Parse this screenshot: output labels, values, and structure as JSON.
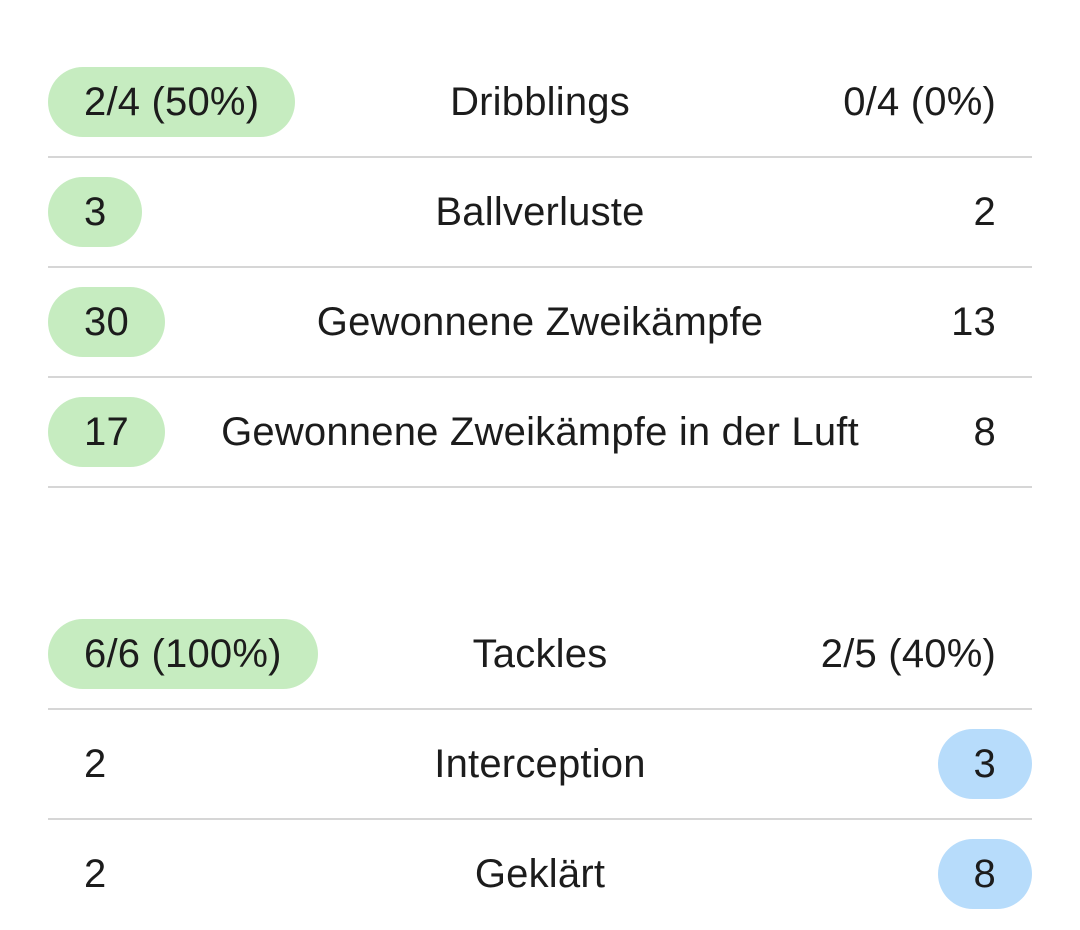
{
  "colors": {
    "highlight_left": "#c6ecc0",
    "highlight_right": "#b7dcfb",
    "divider": "#d6d6d6"
  },
  "sections": [
    {
      "rows": [
        {
          "left": "2/4 (50%)",
          "label": "Dribblings",
          "right": "0/4 (0%)",
          "highlight": "left"
        },
        {
          "left": "3",
          "label": "Ballverluste",
          "right": "2",
          "highlight": "left"
        },
        {
          "left": "30",
          "label": "Gewonnene Zweikämpfe",
          "right": "13",
          "highlight": "left"
        },
        {
          "left": "17",
          "label": "Gewonnene Zweikämpfe in der Luft",
          "right": "8",
          "highlight": "left"
        }
      ]
    },
    {
      "rows": [
        {
          "left": "6/6 (100%)",
          "label": "Tackles",
          "right": "2/5 (40%)",
          "highlight": "left"
        },
        {
          "left": "2",
          "label": "Interception",
          "right": "3",
          "highlight": "right"
        },
        {
          "left": "2",
          "label": "Geklärt",
          "right": "8",
          "highlight": "right"
        }
      ]
    }
  ]
}
